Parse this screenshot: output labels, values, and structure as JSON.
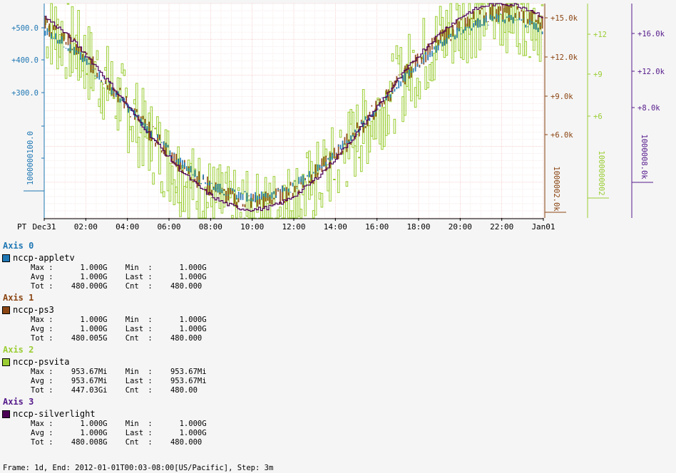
{
  "chart_data": {
    "type": "line",
    "render_style": "step",
    "timezone_label": "PT",
    "x_tick_labels": [
      "Dec31",
      "02:00",
      "04:00",
      "06:00",
      "08:00",
      "10:00",
      "12:00",
      "14:00",
      "16:00",
      "18:00",
      "20:00",
      "22:00",
      "Jan01"
    ],
    "axes": [
      {
        "id": 0,
        "side": "left",
        "color": "#1f77b4",
        "tick_labels": [
          "+300.0",
          "+400.0",
          "+500.0"
        ],
        "label": "1000000100.0"
      },
      {
        "id": 1,
        "side": "right",
        "color": "#8b4513",
        "tick_labels": [
          "+6.0k",
          "+9.0k",
          "+12.0k",
          "+15.0k"
        ],
        "label": "1000002.0k"
      },
      {
        "id": 2,
        "side": "right",
        "color": "#9acd32",
        "tick_labels": [
          "+6",
          "+9",
          "+12"
        ],
        "label": "1000000002"
      },
      {
        "id": 3,
        "side": "right",
        "color": "#551a8b",
        "tick_labels": [
          "+8.0k",
          "+12.0k",
          "+16.0k"
        ],
        "label": "1000008.0k"
      }
    ],
    "series": [
      {
        "name": "nccp-appletv",
        "axis": 0,
        "color": "#1f77b4",
        "style": "bars",
        "shape": "cosine",
        "trough_hour": 10,
        "min": 0.1,
        "max": 0.93,
        "noise": 0.05
      },
      {
        "name": "nccp-ps3",
        "axis": 1,
        "color": "#8b4513",
        "style": "bars",
        "shape": "cosine",
        "trough_hour": 10,
        "min": 0.08,
        "max": 0.96,
        "noise": 0.09
      },
      {
        "name": "nccp-psvita",
        "axis": 2,
        "color": "#9acd32",
        "style": "bars-wide",
        "shape": "cosine",
        "trough_hour": 10,
        "min": 0.02,
        "max": 0.97,
        "noise": 0.4
      },
      {
        "name": "nccp-silverlight",
        "axis": 3,
        "color": "#4b0055",
        "style": "line",
        "shape": "cosine",
        "trough_hour": 10,
        "min": 0.04,
        "max": 1.0,
        "noise": 0.02
      }
    ]
  },
  "legend": {
    "axes": [
      {
        "title": "Axis 0",
        "color": "#1f77b4",
        "series": [
          {
            "name": "nccp-appletv",
            "color": "#1f77b4",
            "stats": "Max :      1.000G    Min  :      1.000G\nAvg :      1.000G    Last :      1.000G\nTot :    480.000G    Cnt  :    480.000"
          }
        ]
      },
      {
        "title": "Axis 1",
        "color": "#8b4513",
        "series": [
          {
            "name": "nccp-ps3",
            "color": "#8b4513",
            "stats": "Max :      1.000G    Min  :      1.000G\nAvg :      1.000G    Last :      1.000G\nTot :    480.005G    Cnt  :    480.000"
          }
        ]
      },
      {
        "title": "Axis 2",
        "color": "#9acd32",
        "series": [
          {
            "name": "nccp-psvita",
            "color": "#9acd32",
            "stats": "Max :    953.67Mi    Min  :    953.67Mi\nAvg :    953.67Mi    Last :    953.67Mi\nTot :    447.03Gi    Cnt  :    480.00"
          }
        ]
      },
      {
        "title": "Axis 3",
        "color": "#551a8b",
        "series": [
          {
            "name": "nccp-silverlight",
            "color": "#4b0055",
            "stats": "Max :      1.000G    Min  :      1.000G\nAvg :      1.000G    Last :      1.000G\nTot :    480.008G    Cnt  :    480.000"
          }
        ]
      }
    ]
  },
  "footer": "Frame: 1d, End: 2012-01-01T00:03-08:00[US/Pacific], Step: 3m"
}
